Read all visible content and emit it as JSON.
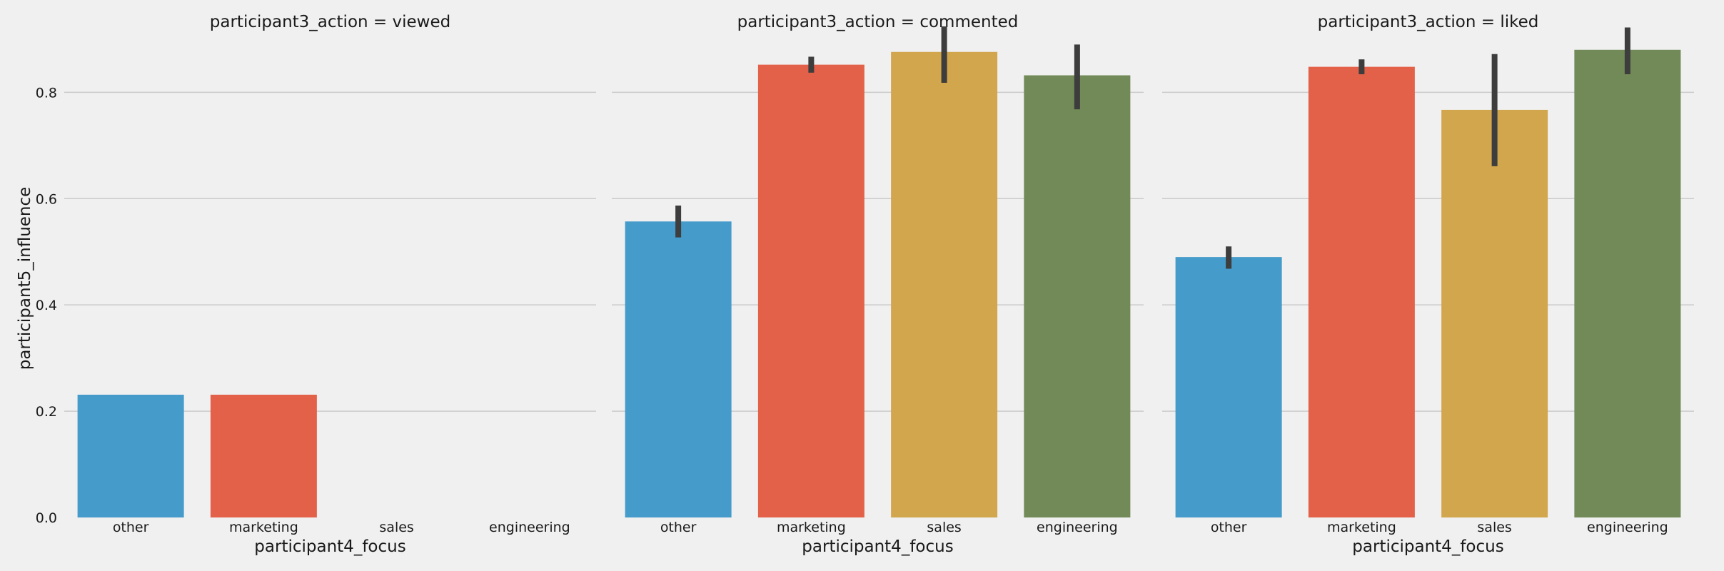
{
  "chart_data": {
    "type": "bar",
    "ylabel": "participant5_influence",
    "xlabel": "participant4_focus",
    "ylim": [
      0,
      0.92
    ],
    "yticks": [
      0.0,
      0.2,
      0.4,
      0.6,
      0.8
    ],
    "ytick_labels": [
      "0.0",
      "0.2",
      "0.4",
      "0.6",
      "0.8"
    ],
    "categories": [
      "other",
      "marketing",
      "sales",
      "engineering"
    ],
    "category_colors": [
      "#459bca",
      "#e46149",
      "#d2a64c",
      "#718a57"
    ],
    "grid": true,
    "legend": "none",
    "panels": [
      {
        "title": "participant3_action = viewed",
        "values": [
          0.231,
          0.231,
          null,
          null
        ],
        "error_low": [
          null,
          null,
          null,
          null
        ],
        "error_high": [
          null,
          null,
          null,
          null
        ]
      },
      {
        "title": "participant3_action = commented",
        "values": [
          0.557,
          0.852,
          0.876,
          0.832
        ],
        "error_low": [
          0.527,
          0.837,
          0.818,
          0.768
        ],
        "error_high": [
          0.587,
          0.867,
          0.924,
          0.89
        ]
      },
      {
        "title": "participant3_action = liked",
        "values": [
          0.49,
          0.848,
          0.767,
          0.88
        ],
        "error_low": [
          0.468,
          0.834,
          0.661,
          0.834
        ],
        "error_high": [
          0.51,
          0.862,
          0.872,
          0.922
        ]
      }
    ]
  }
}
